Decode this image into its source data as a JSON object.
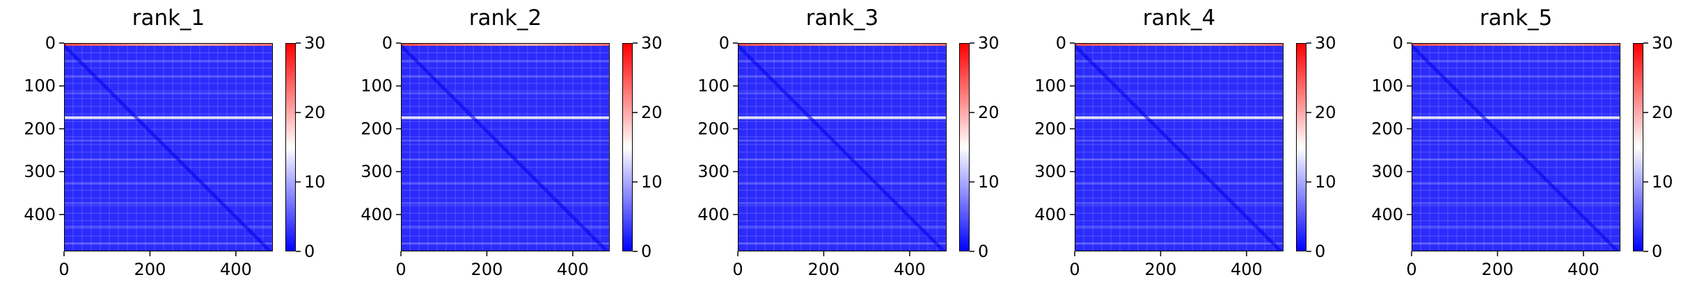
{
  "chart_data": [
    {
      "type": "heatmap",
      "title": "rank_1",
      "x_ticks": [
        0,
        200,
        400
      ],
      "y_ticks": [
        0,
        100,
        200,
        300,
        400
      ],
      "xlim": [
        0,
        486
      ],
      "ylim": [
        486,
        0
      ],
      "colorbar": {
        "min": 0,
        "max": 30,
        "ticks": [
          0,
          10,
          20,
          30
        ],
        "colors": [
          "#0000ff",
          "#ffffff",
          "#ff0000"
        ]
      }
    },
    {
      "type": "heatmap",
      "title": "rank_2",
      "x_ticks": [
        0,
        200,
        400
      ],
      "y_ticks": [
        0,
        100,
        200,
        300,
        400
      ],
      "xlim": [
        0,
        486
      ],
      "ylim": [
        486,
        0
      ],
      "colorbar": {
        "min": 0,
        "max": 30,
        "ticks": [
          0,
          10,
          20,
          30
        ],
        "colors": [
          "#0000ff",
          "#ffffff",
          "#ff0000"
        ]
      }
    },
    {
      "type": "heatmap",
      "title": "rank_3",
      "x_ticks": [
        0,
        200,
        400
      ],
      "y_ticks": [
        0,
        100,
        200,
        300,
        400
      ],
      "xlim": [
        0,
        486
      ],
      "ylim": [
        486,
        0
      ],
      "colorbar": {
        "min": 0,
        "max": 30,
        "ticks": [
          0,
          10,
          20,
          30
        ],
        "colors": [
          "#0000ff",
          "#ffffff",
          "#ff0000"
        ]
      }
    },
    {
      "type": "heatmap",
      "title": "rank_4",
      "x_ticks": [
        0,
        200,
        400
      ],
      "y_ticks": [
        0,
        100,
        200,
        300,
        400
      ],
      "xlim": [
        0,
        486
      ],
      "ylim": [
        486,
        0
      ],
      "colorbar": {
        "min": 0,
        "max": 30,
        "ticks": [
          0,
          10,
          20,
          30
        ],
        "colors": [
          "#0000ff",
          "#ffffff",
          "#ff0000"
        ]
      }
    },
    {
      "type": "heatmap",
      "title": "rank_5",
      "x_ticks": [
        0,
        200,
        400
      ],
      "y_ticks": [
        0,
        100,
        200,
        300,
        400
      ],
      "xlim": [
        0,
        486
      ],
      "ylim": [
        486,
        0
      ],
      "colorbar": {
        "min": 0,
        "max": 30,
        "ticks": [
          0,
          10,
          20,
          30
        ],
        "colors": [
          "#0000ff",
          "#ffffff",
          "#ff0000"
        ]
      }
    }
  ]
}
